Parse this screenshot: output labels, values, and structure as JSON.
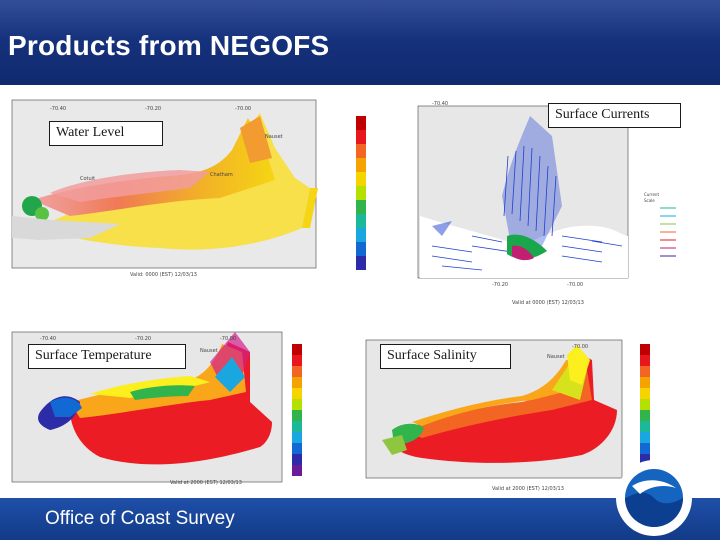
{
  "slide": {
    "title": "Products from NEGOFS",
    "footer": "Office of Coast Survey"
  },
  "panels": [
    {
      "label": "Water Level",
      "map_type": "water-level"
    },
    {
      "label": "Surface Currents",
      "map_type": "surface-currents"
    },
    {
      "label": "Surface Temperature",
      "map_type": "surface-temperature"
    },
    {
      "label": "Surface Salinity",
      "map_type": "surface-salinity"
    }
  ],
  "colors": {
    "title_bar": "#15307a",
    "footer_bar": "#1a4599",
    "land": "#e6e6e6",
    "current_vectors": "#1d3fd1"
  },
  "icons": {
    "logo": "noaa-logo-icon"
  }
}
